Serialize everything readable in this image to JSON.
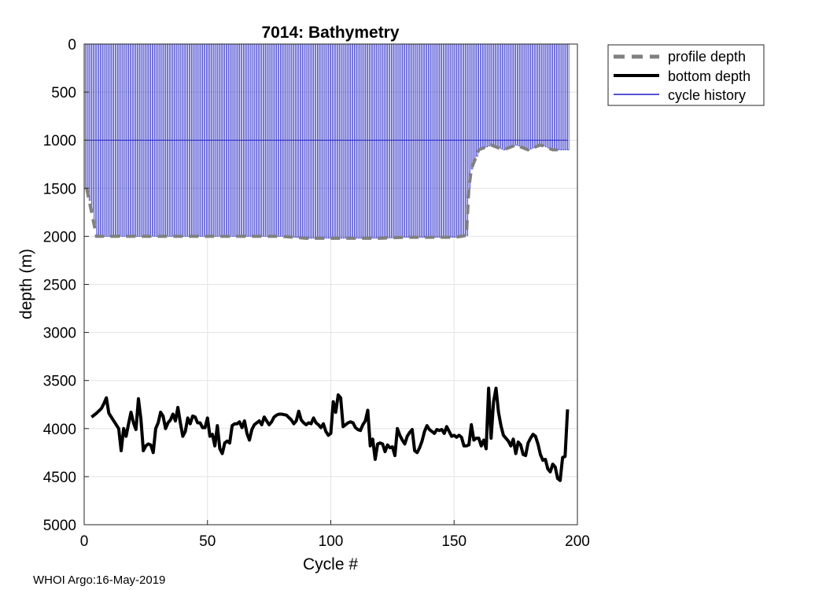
{
  "chart_data": {
    "type": "line",
    "title": "7014: Bathymetry",
    "xlabel": "Cycle #",
    "ylabel": "depth (m)",
    "xlim": [
      0,
      200
    ],
    "ylim": [
      0,
      5000
    ],
    "y_reversed": true,
    "grid": true,
    "xticks": [
      0,
      50,
      100,
      150,
      200
    ],
    "yticks": [
      0,
      500,
      1000,
      1500,
      2000,
      2500,
      3000,
      3500,
      4000,
      4500,
      5000
    ],
    "legend_position": "outside-top-right",
    "legend": [
      {
        "label": "profile depth",
        "style": "dashed",
        "color": "#808080"
      },
      {
        "label": "bottom depth",
        "style": "solid",
        "color": "#000000"
      },
      {
        "label": "cycle history",
        "style": "solid",
        "color": "#0000cc"
      }
    ],
    "series": [
      {
        "name": "profile depth",
        "x": [
          1,
          5,
          10,
          20,
          30,
          40,
          50,
          60,
          70,
          80,
          85,
          90,
          95,
          100,
          110,
          120,
          130,
          140,
          150,
          153,
          155,
          156,
          157,
          160,
          165,
          170,
          175,
          180,
          185,
          190,
          192
        ],
        "y": [
          1500,
          2000,
          2000,
          2000,
          2000,
          2000,
          2000,
          2000,
          2000,
          2000,
          2010,
          2020,
          2020,
          2020,
          2020,
          2020,
          2010,
          2010,
          2010,
          2000,
          1990,
          1500,
          1300,
          1100,
          1050,
          1100,
          1050,
          1100,
          1050,
          1100,
          1100
        ]
      },
      {
        "name": "bottom depth",
        "x": [
          3,
          5,
          7,
          8,
          9,
          10,
          12,
          13,
          14,
          15,
          16,
          17,
          18,
          19,
          20,
          21,
          22,
          23,
          24,
          25,
          26,
          27,
          28,
          29,
          30,
          31,
          32,
          33,
          34,
          35,
          36,
          37,
          38,
          39,
          40,
          41,
          42,
          43,
          44,
          45,
          46,
          47,
          48,
          49,
          50,
          51,
          52,
          53,
          54,
          55,
          56,
          57,
          58,
          59,
          60,
          61,
          62,
          63,
          64,
          65,
          66,
          67,
          68,
          69,
          70,
          71,
          72,
          73,
          74,
          75,
          76,
          77,
          78,
          79,
          80,
          82,
          84,
          85,
          86,
          87,
          88,
          89,
          90,
          91,
          92,
          93,
          94,
          95,
          96,
          97,
          98,
          99,
          100,
          101,
          102,
          103,
          104,
          105,
          106,
          107,
          108,
          109,
          110,
          111,
          112,
          113,
          114,
          115,
          116,
          117,
          118,
          119,
          120,
          121,
          122,
          123,
          124,
          125,
          126,
          127,
          128,
          129,
          130,
          131,
          132,
          133,
          134,
          135,
          136,
          137,
          138,
          139,
          140,
          141,
          142,
          143,
          144,
          145,
          146,
          147,
          148,
          149,
          150,
          151,
          152,
          153,
          154,
          155,
          156,
          157,
          158,
          159,
          160,
          161,
          162,
          163,
          164,
          165,
          166,
          167,
          168,
          169,
          170,
          171,
          172,
          173,
          174,
          175,
          176,
          177,
          178,
          179,
          180,
          181,
          182,
          183,
          184,
          185,
          186,
          187,
          188,
          189,
          190,
          191,
          192,
          193,
          194,
          195,
          196
        ],
        "y": [
          3880,
          3840,
          3790,
          3740,
          3680,
          3840,
          3920,
          3960,
          4000,
          4230,
          4000,
          4080,
          3950,
          3830,
          3940,
          4010,
          3690,
          3900,
          4230,
          4180,
          4160,
          4170,
          4250,
          4000,
          3940,
          3830,
          3870,
          4000,
          3940,
          3910,
          3850,
          3920,
          3780,
          3940,
          4080,
          4030,
          3890,
          3950,
          3870,
          3880,
          3940,
          3940,
          3990,
          3990,
          3890,
          4080,
          4060,
          4180,
          3970,
          4210,
          4260,
          4150,
          4130,
          4150,
          3970,
          3950,
          3950,
          3930,
          3990,
          3920,
          4050,
          4120,
          4010,
          3960,
          3940,
          3920,
          3960,
          3880,
          3920,
          3960,
          3930,
          3880,
          3860,
          3850,
          3850,
          3860,
          3910,
          3950,
          3920,
          3820,
          3910,
          3940,
          3960,
          3940,
          3950,
          3890,
          3940,
          3960,
          3990,
          3950,
          4030,
          4070,
          4050,
          3720,
          3830,
          3650,
          3680,
          3980,
          3960,
          3940,
          3930,
          3940,
          3990,
          4010,
          4020,
          3960,
          3920,
          3810,
          4180,
          4110,
          4320,
          4160,
          4150,
          4160,
          4240,
          4170,
          4200,
          4190,
          4280,
          4000,
          4070,
          4120,
          4160,
          4080,
          4040,
          4010,
          4230,
          4250,
          4200,
          4130,
          4030,
          3970,
          4010,
          4030,
          4050,
          4010,
          4020,
          4010,
          4050,
          3980,
          4030,
          4080,
          4070,
          4090,
          4070,
          4090,
          4180,
          4180,
          4170,
          3960,
          4120,
          4100,
          4100,
          4180,
          4120,
          4210,
          3580,
          4100,
          3720,
          3580,
          3830,
          3970,
          4070,
          4100,
          4130,
          4180,
          4110,
          4260,
          4140,
          4170,
          4270,
          4280,
          4150,
          4100,
          4060,
          4080,
          4160,
          4270,
          4330,
          4320,
          4420,
          4450,
          4370,
          4400,
          4520,
          4540,
          4300,
          4290,
          3800
        ]
      },
      {
        "name": "cycle history",
        "x_range": [
          0,
          196
        ],
        "y_top": 0,
        "y_bottom": 2000
      }
    ]
  },
  "footer": "WHOI Argo:16-May-2019"
}
